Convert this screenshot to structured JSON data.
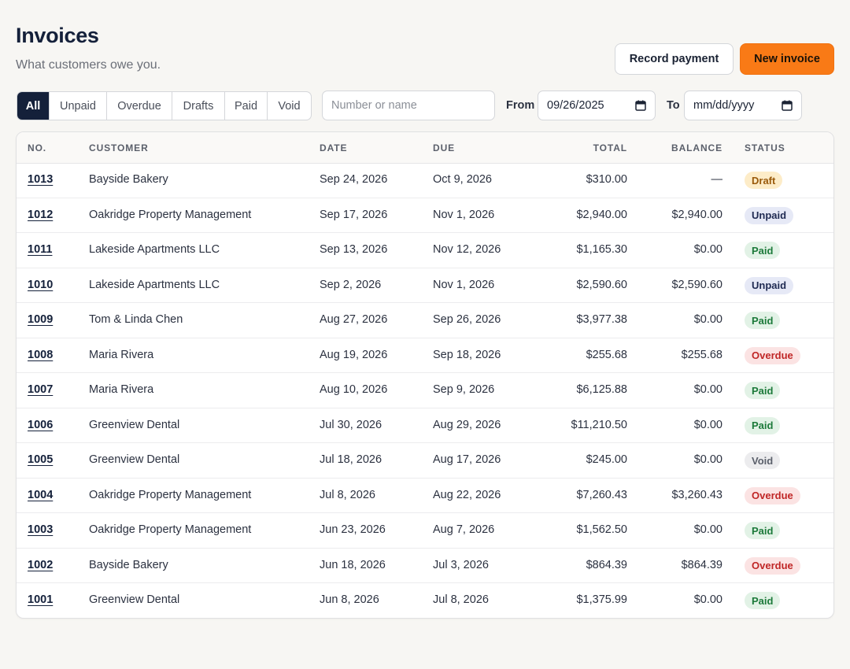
{
  "header": {
    "title": "Invoices",
    "subtitle": "What customers owe you.",
    "record_payment_label": "Record payment",
    "new_invoice_label": "New invoice"
  },
  "filters": {
    "tabs": [
      {
        "label": "All",
        "active": true
      },
      {
        "label": "Unpaid",
        "active": false
      },
      {
        "label": "Overdue",
        "active": false
      },
      {
        "label": "Drafts",
        "active": false
      },
      {
        "label": "Paid",
        "active": false
      },
      {
        "label": "Void",
        "active": false
      }
    ],
    "search_placeholder": "Number or name",
    "search_value": "",
    "from_label": "From",
    "from_value": "09/26/2025",
    "to_label": "To",
    "to_value": "mm/dd/yyyy"
  },
  "table": {
    "columns": [
      "NO.",
      "CUSTOMER",
      "DATE",
      "DUE",
      "TOTAL",
      "BALANCE",
      "STATUS"
    ],
    "rows": [
      {
        "no": "1013",
        "customer": "Bayside Bakery",
        "date": "Sep 24, 2026",
        "due": "Oct 9, 2026",
        "total": "$310.00",
        "balance": "—",
        "status": "Draft"
      },
      {
        "no": "1012",
        "customer": "Oakridge Property Management",
        "date": "Sep 17, 2026",
        "due": "Nov 1, 2026",
        "total": "$2,940.00",
        "balance": "$2,940.00",
        "status": "Unpaid"
      },
      {
        "no": "1011",
        "customer": "Lakeside Apartments LLC",
        "date": "Sep 13, 2026",
        "due": "Nov 12, 2026",
        "total": "$1,165.30",
        "balance": "$0.00",
        "status": "Paid"
      },
      {
        "no": "1010",
        "customer": "Lakeside Apartments LLC",
        "date": "Sep 2, 2026",
        "due": "Nov 1, 2026",
        "total": "$2,590.60",
        "balance": "$2,590.60",
        "status": "Unpaid"
      },
      {
        "no": "1009",
        "customer": "Tom & Linda Chen",
        "date": "Aug 27, 2026",
        "due": "Sep 26, 2026",
        "total": "$3,977.38",
        "balance": "$0.00",
        "status": "Paid"
      },
      {
        "no": "1008",
        "customer": "Maria Rivera",
        "date": "Aug 19, 2026",
        "due": "Sep 18, 2026",
        "total": "$255.68",
        "balance": "$255.68",
        "status": "Overdue"
      },
      {
        "no": "1007",
        "customer": "Maria Rivera",
        "date": "Aug 10, 2026",
        "due": "Sep 9, 2026",
        "total": "$6,125.88",
        "balance": "$0.00",
        "status": "Paid"
      },
      {
        "no": "1006",
        "customer": "Greenview Dental",
        "date": "Jul 30, 2026",
        "due": "Aug 29, 2026",
        "total": "$11,210.50",
        "balance": "$0.00",
        "status": "Paid"
      },
      {
        "no": "1005",
        "customer": "Greenview Dental",
        "date": "Jul 18, 2026",
        "due": "Aug 17, 2026",
        "total": "$245.00",
        "balance": "$0.00",
        "status": "Void"
      },
      {
        "no": "1004",
        "customer": "Oakridge Property Management",
        "date": "Jul 8, 2026",
        "due": "Aug 22, 2026",
        "total": "$7,260.43",
        "balance": "$3,260.43",
        "status": "Overdue"
      },
      {
        "no": "1003",
        "customer": "Oakridge Property Management",
        "date": "Jun 23, 2026",
        "due": "Aug 7, 2026",
        "total": "$1,562.50",
        "balance": "$0.00",
        "status": "Paid"
      },
      {
        "no": "1002",
        "customer": "Bayside Bakery",
        "date": "Jun 18, 2026",
        "due": "Jul 3, 2026",
        "total": "$864.39",
        "balance": "$864.39",
        "status": "Overdue"
      },
      {
        "no": "1001",
        "customer": "Greenview Dental",
        "date": "Jun 8, 2026",
        "due": "Jul 8, 2026",
        "total": "$1,375.99",
        "balance": "$0.00",
        "status": "Paid"
      }
    ]
  },
  "colors": {
    "primary": "#f97a16",
    "navy": "#14203a",
    "background": "#f7f6f3"
  }
}
